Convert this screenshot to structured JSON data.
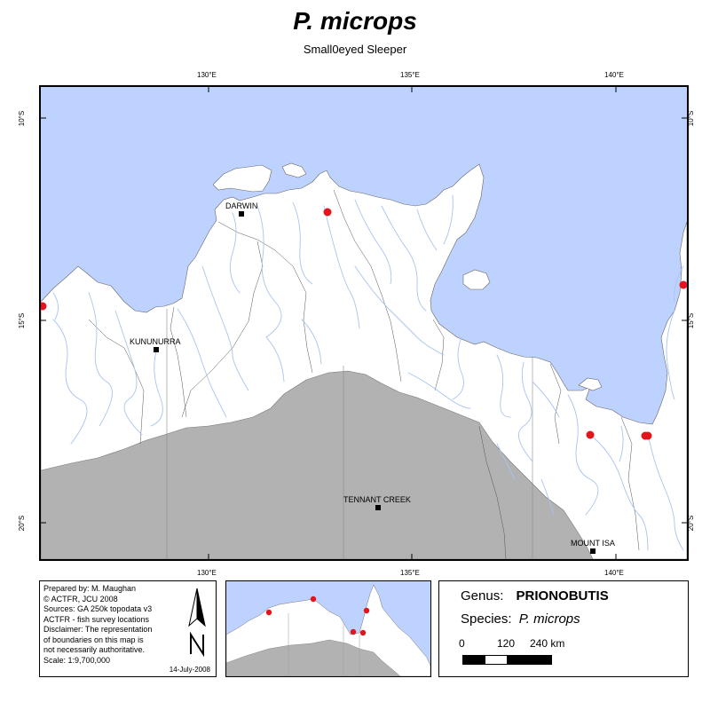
{
  "title": "P. microps",
  "subtitle": "Small0eyed Sleeper",
  "graticule": {
    "lon_labels": [
      "130°E",
      "135°E",
      "140°E"
    ],
    "lat_labels": [
      "10°S",
      "15°S",
      "20°S"
    ]
  },
  "cities": [
    {
      "name": "DARWIN"
    },
    {
      "name": "KUNUNURRA"
    },
    {
      "name": "TENNANT CREEK"
    },
    {
      "name": "MOUNT ISA"
    }
  ],
  "survey_points_count": 7,
  "legend": {
    "survey_color": "#e3141b",
    "sea_color": "#bed2ff",
    "land_color": "#ffffff",
    "outside_color": "#b2b2b2",
    "river_color": "#a8c4f0"
  },
  "credits": {
    "lines": [
      "Prepared by: M. Maughan",
      "© ACTFR, JCU 2008",
      "Sources: GA 250k topodata v3",
      "ACTFR - fish survey locations",
      "Disclaimer: The representation",
      "of boundaries on this map is",
      "not necessarily authoritative.",
      "Scale: 1:9,700,000"
    ],
    "date": "14-July-2008"
  },
  "info": {
    "genus_label": "Genus:",
    "genus_value": "PRIONOBUTIS",
    "species_label": "Species:",
    "species_value": "P. microps",
    "scale_labels": [
      "0",
      "120",
      "240 km"
    ]
  }
}
